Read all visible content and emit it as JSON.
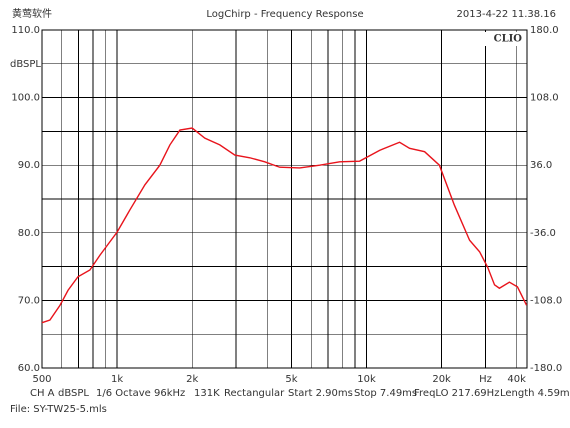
{
  "chart_data": {
    "type": "line",
    "brand": "黄莺软件",
    "title": "LogChirp - Frequency Response",
    "timestamp": "2013-4-22 11.38.16",
    "logo": "CLIO",
    "ylabel": "dBSPL",
    "x_unit": "Hz",
    "log_x": true,
    "grid": true,
    "xlim": [
      500,
      44000
    ],
    "xticks": [
      500,
      {
        "value": 1000,
        "label": "1k"
      },
      {
        "value": 2000,
        "label": "2k"
      },
      {
        "value": 5000,
        "label": "5k"
      },
      {
        "value": 10000,
        "label": "10k"
      },
      {
        "value": 20000,
        "label": "20k"
      },
      {
        "value": 40000,
        "label": "40k"
      }
    ],
    "x_unit_at": 30000,
    "xminor": [
      600,
      700,
      800,
      900,
      3000,
      4000,
      6000,
      7000,
      8000,
      9000,
      30000
    ],
    "ylim": [
      60,
      110
    ],
    "yticks": [
      {
        "value": 60,
        "label": "60.0"
      },
      {
        "value": 70,
        "label": "70.0"
      },
      {
        "value": 80,
        "label": "80.0"
      },
      {
        "value": 90,
        "label": "90.0"
      },
      {
        "value": 100,
        "label": "100.0"
      },
      {
        "value": 110,
        "label": "110.0"
      }
    ],
    "yminor": [
      65,
      75,
      85,
      95,
      105
    ],
    "y2lim": [
      -180,
      180
    ],
    "y2ticks": [
      {
        "value": -180,
        "label": "-180.0"
      },
      {
        "value": -108,
        "label": "-108.0"
      },
      {
        "value": -36,
        "label": "-36.0"
      },
      {
        "value": 36,
        "label": "36.0"
      },
      {
        "value": 108,
        "label": "108.0"
      },
      {
        "value": 180,
        "label": "180.0"
      }
    ],
    "footer": [
      "CH A",
      "dBSPL",
      "1/6 Octave",
      "96kHz",
      "131K",
      "Rectangular",
      "Start 2.90ms",
      "Stop 7.49ms",
      "FreqLO 217.69Hz",
      "Length 4.59ms"
    ],
    "file": "File: SY-TW25-5.mls",
    "series": [
      {
        "color": "#e8141c",
        "x": [
          500,
          538,
          591,
          636,
          697,
          778,
          854,
          1000,
          1126,
          1293,
          1484,
          1628,
          1786,
          2000,
          2248,
          2581,
          2965,
          3404,
          3909,
          4488,
          5397,
          6489,
          7805,
          9384,
          11284,
          13570,
          14884,
          17097,
          19600,
          22500,
          25900,
          28400,
          30600,
          32600,
          34100,
          37400,
          40300,
          43800
        ],
        "values": [
          66.7,
          67.1,
          69.3,
          71.5,
          73.5,
          74.5,
          76.7,
          80.1,
          83.4,
          87.1,
          90.0,
          93.0,
          95.2,
          95.5,
          94.0,
          93.0,
          91.5,
          91.1,
          90.5,
          89.7,
          89.6,
          90.0,
          90.5,
          90.6,
          92.2,
          93.4,
          92.5,
          92.0,
          90.0,
          84.1,
          78.9,
          77.2,
          74.9,
          72.3,
          71.8,
          72.7,
          72.0,
          69.3
        ]
      }
    ]
  }
}
